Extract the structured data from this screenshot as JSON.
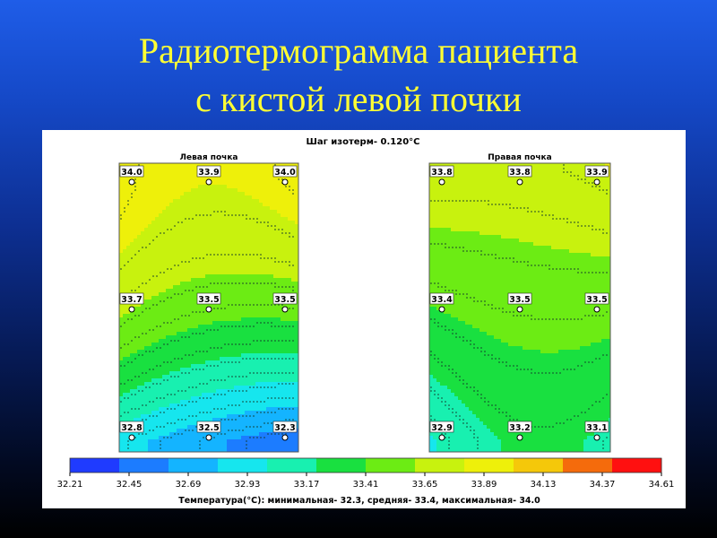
{
  "slide": {
    "title_line1": "Радиотермограмма  пациента",
    "title_line2": "с кистой левой почки"
  },
  "chart_data": {
    "type": "heatmap",
    "title": "Шаг изотерм- 0.120°C",
    "panels": [
      {
        "name": "Левая почка",
        "grid": [
          [
            34.0,
            33.9,
            34.0
          ],
          [
            33.7,
            33.5,
            33.5
          ],
          [
            32.8,
            32.5,
            32.3
          ]
        ],
        "labels": [
          [
            "34.0",
            "33.9",
            "34.0"
          ],
          [
            "33.7",
            "33.5",
            "33.5"
          ],
          [
            "32.8",
            "32.5",
            "32.3"
          ]
        ]
      },
      {
        "name": "Правая почка",
        "grid": [
          [
            33.8,
            33.8,
            33.9
          ],
          [
            33.4,
            33.5,
            33.5
          ],
          [
            32.9,
            33.2,
            33.1
          ]
        ],
        "labels": [
          [
            "33.8",
            "33.8",
            "33.9"
          ],
          [
            "33.4",
            "33.5",
            "33.5"
          ],
          [
            "32.9",
            "33.2",
            "33.1"
          ]
        ]
      }
    ],
    "scale": {
      "ticks": [
        "32.21",
        "32.45",
        "32.69",
        "32.93",
        "33.17",
        "33.41",
        "33.65",
        "33.89",
        "34.13",
        "34.37",
        "34.61"
      ],
      "tick_values": [
        32.21,
        32.45,
        32.69,
        32.93,
        33.17,
        33.41,
        33.65,
        33.89,
        34.13,
        34.37,
        34.61
      ],
      "colors": [
        "#1f3bff",
        "#1c7cff",
        "#14b4ff",
        "#16e6ee",
        "#18f0b0",
        "#19e040",
        "#6cec14",
        "#c8f20e",
        "#eef00a",
        "#f5c80a",
        "#f56b0c",
        "#ff1010"
      ]
    },
    "caption": "Температура(°C): минимальная-   32.3,  средняя-   33.4,  максимальная-   34.0",
    "isotherm_step": 0.12
  }
}
